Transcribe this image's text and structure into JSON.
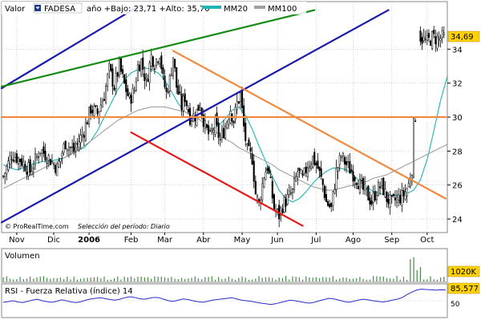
{
  "header": {
    "valor_label": "Valor",
    "ticker": "FADESA",
    "stats": "año +Bajo: 23,71 +Alto: 35,70",
    "legend": [
      {
        "label": "MM20",
        "color": "#1fb5b5"
      },
      {
        "label": "MM100",
        "color": "#a0a0a0"
      }
    ]
  },
  "footer": {
    "brand": "© ProRealTime.com",
    "period": "Selección del período: Diario"
  },
  "colors": {
    "candle": "#000000",
    "up_fill": "#ffffff",
    "mm20": "#1fb5b5",
    "mm100": "#a0a0a0",
    "blue_line": "#1a1aaa",
    "green_line": "#148c14",
    "orange_line": "#f08a40",
    "red_line": "#e81818",
    "volume": "#4a8a4a",
    "rsi": "#2a2acc",
    "panel_bg": "#ffffff",
    "border": "#888888",
    "grid": "#b8b8b8",
    "price_badge_bg": "#ffd200"
  },
  "volume_panel": {
    "label": "Volumen",
    "value_label": "1020K"
  },
  "rsi_panel": {
    "label": "RSI - Fuerza Relativa (índice) 14",
    "value_label": "85,577",
    "ticks": [
      50
    ],
    "range": [
      0,
      100
    ],
    "series": [
      45,
      47,
      50,
      46,
      44,
      48,
      52,
      55,
      50,
      47,
      45,
      48,
      53,
      50,
      46,
      44,
      47,
      52,
      56,
      58,
      60,
      57,
      54,
      52,
      55,
      60,
      63,
      61,
      57,
      55,
      58,
      61,
      60,
      55,
      50,
      48,
      52,
      56,
      54,
      50,
      47,
      45,
      48,
      52,
      54,
      56,
      58,
      60,
      56,
      52,
      50,
      48,
      45,
      42,
      40,
      38,
      40,
      44,
      48,
      52,
      50,
      47,
      44,
      42,
      45,
      50,
      54,
      58,
      56,
      52,
      48,
      45,
      48,
      52,
      55,
      53,
      50,
      48,
      46,
      48,
      52,
      55,
      60,
      70,
      78,
      85,
      88,
      87,
      86,
      85,
      86,
      85.577
    ]
  },
  "chart_data": {
    "type": "candlestick",
    "title": "",
    "xlabel": "",
    "ylabel": "",
    "ylim": [
      23.2,
      36.8
    ],
    "yticks": [
      24,
      26,
      28,
      30,
      32,
      34
    ],
    "ytick_labels": [
      "24",
      "26",
      "28",
      "30",
      "32",
      "34"
    ],
    "x_labels": [
      "Nov",
      "Dic",
      "2006",
      "Feb",
      "Mar",
      "Abr",
      "May",
      "Jun",
      "Jul",
      "Ago",
      "Sep",
      "Oct"
    ],
    "x_label_positions": [
      8,
      30,
      51,
      76,
      96,
      119,
      142,
      163,
      186,
      208,
      231,
      252
    ],
    "x_range": [
      -1,
      264
    ],
    "last_price": "34,69",
    "series": [
      {
        "name": "MM20",
        "values": [
          27.2,
          27.0,
          26.9,
          27.0,
          27.2,
          27.3,
          27.4,
          27.4,
          27.5,
          27.6,
          27.8,
          28.0,
          28.2,
          28.6,
          29.2,
          30.0,
          30.8,
          31.6,
          32.2,
          32.6,
          32.8,
          32.9,
          32.8,
          32.6,
          32.2,
          31.5,
          30.8,
          30.3,
          30.1,
          29.9,
          29.6,
          29.3,
          29.5,
          29.9,
          30.4,
          30.6,
          30.1,
          29.3,
          28.3,
          27.4,
          26.5,
          25.7,
          25.2,
          25.0,
          25.2,
          25.6,
          26.1,
          26.5,
          26.8,
          27.0,
          27.0,
          26.9,
          26.6,
          26.2,
          25.9,
          25.6,
          25.5,
          25.4,
          25.4,
          25.4,
          25.5,
          25.7,
          26.3,
          27.5,
          29.2,
          31.0,
          32.4
        ]
      },
      {
        "name": "MM100",
        "values": [
          25.8,
          26.0,
          26.2,
          26.4,
          26.6,
          26.8,
          27.0,
          27.2,
          27.4,
          27.6,
          27.8,
          28.0,
          28.3,
          28.6,
          28.9,
          29.2,
          29.5,
          29.8,
          30.0,
          30.2,
          30.4,
          30.5,
          30.6,
          30.6,
          30.6,
          30.5,
          30.4,
          30.3,
          30.1,
          29.9,
          29.6,
          29.3,
          29.0,
          28.7,
          28.5,
          28.2,
          28.0,
          27.8,
          27.6,
          27.4,
          27.2,
          26.9,
          26.7,
          26.5,
          26.3,
          26.1,
          25.9,
          25.8,
          25.7,
          25.7,
          25.8,
          25.9,
          26.0,
          26.1,
          26.2,
          26.4,
          26.5,
          26.6,
          26.8,
          27.0,
          27.2,
          27.4,
          27.6,
          27.8,
          28.0,
          28.2,
          28.4
        ]
      }
    ],
    "trendlines": [
      {
        "name": "Blue channel upper",
        "color": "blue_line",
        "from": [
          -1,
          31.7
        ],
        "to": [
          80,
          36.5
        ]
      },
      {
        "name": "Blue channel lower",
        "color": "blue_line",
        "from": [
          -1,
          23.8
        ],
        "to": [
          229,
          36.3
        ]
      },
      {
        "name": "Green trend",
        "color": "green_line",
        "from": [
          -1,
          31.8
        ],
        "to": [
          185,
          36.3
        ]
      },
      {
        "name": "Orange resistance",
        "color": "orange_line",
        "from": [
          101,
          33.9
        ],
        "to": [
          263,
          25.2
        ]
      },
      {
        "name": "Orange horizontal",
        "color": "orange_line",
        "from": [
          -1,
          30.0
        ],
        "to": [
          263,
          30.0
        ]
      },
      {
        "name": "Red channel",
        "color": "red_line",
        "from": [
          76,
          29.1
        ],
        "to": [
          178,
          23.6
        ]
      }
    ]
  }
}
